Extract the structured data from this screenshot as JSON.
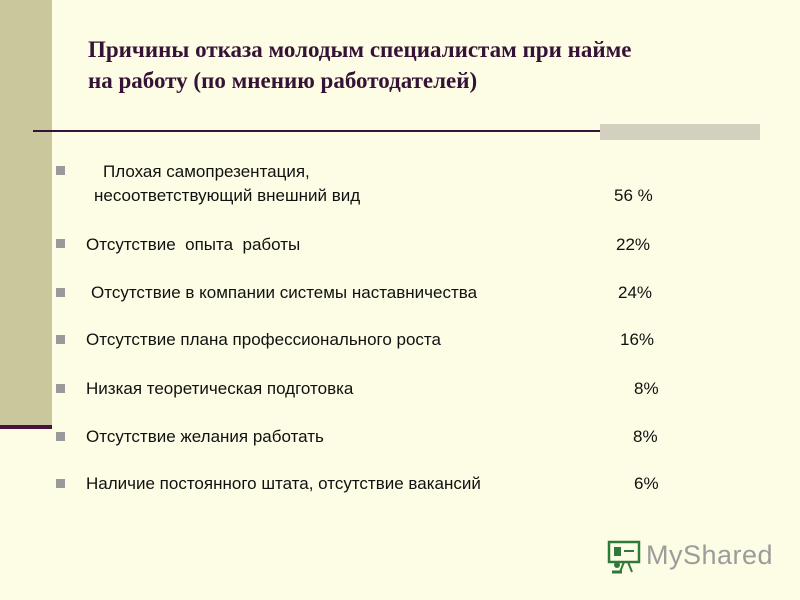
{
  "title": {
    "line1": "Причины отказа молодым специалистам при найме",
    "line2": "на работу (по мнению работодателей)"
  },
  "items": [
    {
      "label": "Плохая самопрезентация,",
      "label2": "несоответствующий внешний вид",
      "value": "56 %"
    },
    {
      "label": "Отсутствие  опыта  работы",
      "value": "22%"
    },
    {
      "label": "Отсутствие в компании системы наставничества",
      "value": "24%"
    },
    {
      "label": "Отсутствие плана профессионального роста",
      "value": "16%"
    },
    {
      "label": "Низкая теоретическая подготовка",
      "value": "8%"
    },
    {
      "label": "Отсутствие желания работать",
      "value": "8%"
    },
    {
      "label": "Наличие постоянного штата, отсутствие вакансий",
      "value": "6%"
    }
  ],
  "logo": {
    "text": "MyShared",
    "icon": "teacher-board-icon"
  }
}
